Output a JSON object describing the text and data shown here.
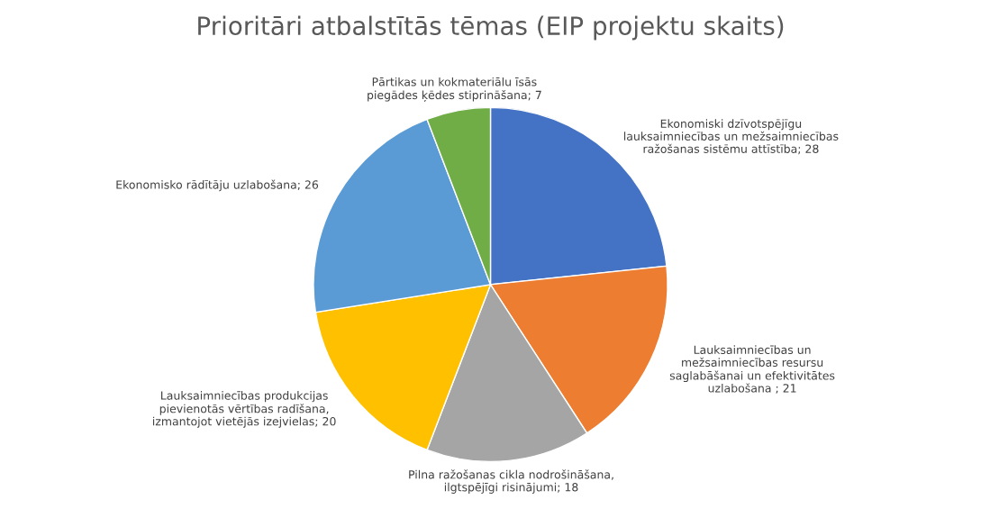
{
  "chart_data": {
    "type": "pie",
    "title": "Prioritāri atbalstītās tēmas (EIP projektu skaits)",
    "categories": [
      "Ekonomiski dzīvotspējīgu\nlauksaimniecības un mežsaimniecības\nražošanas sistēmu attīstība; 28",
      "Lauksaimniecības un\nmežsaimniecības resursu\nsaglabāšanai un efektivitātes\nuzlabošana ; 21",
      "Pilna ražošanas cikla nodrošināšana,\nilgtspējīgi risinājumi; 18",
      "Lauksaimniecības produkcijas\npievienotās vērtības radīšana,\nizmantojot vietējās izejvielas; 20",
      "Ekonomisko rādītāju uzlabošana; 26",
      "Pārtikas un kokmateriālu īsās\npiegādes ķēdes stiprināšana; 7"
    ],
    "values": [
      28,
      21,
      18,
      20,
      26,
      7
    ],
    "colors": [
      "#4472c4",
      "#ed7d31",
      "#a5a5a5",
      "#ffc000",
      "#5b9bd5",
      "#70ad47"
    ],
    "legend": false
  }
}
